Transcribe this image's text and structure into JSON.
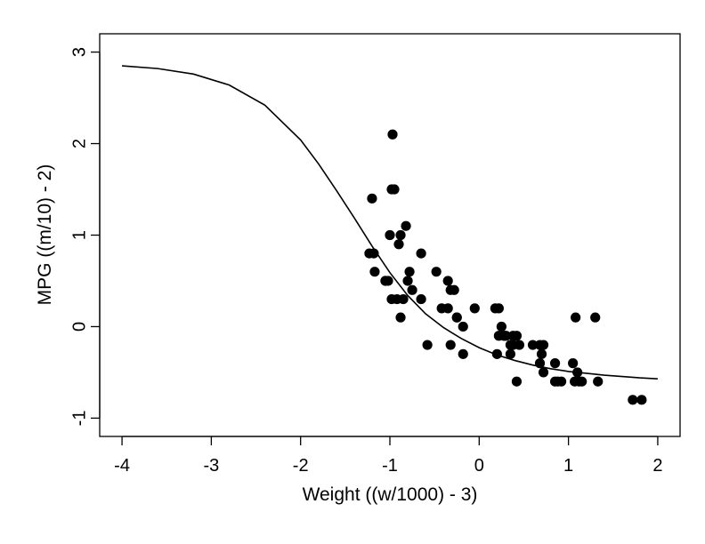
{
  "chart_data": {
    "type": "scatter",
    "xlabel": "Weight ((w/1000) - 3)",
    "ylabel": "MPG ((m/10) - 2)",
    "xlim": [
      -4.25,
      2.25
    ],
    "ylim": [
      -1.2,
      3.2
    ],
    "xticks": [
      -4,
      -3,
      -2,
      -1,
      0,
      1,
      2
    ],
    "yticks": [
      -1,
      0,
      1,
      2,
      3
    ],
    "grid": false,
    "legend": "none",
    "points": {
      "x": [
        -0.97,
        -1.2,
        -0.98,
        -0.95,
        -1.0,
        -0.82,
        -1.05,
        -0.88,
        -0.9,
        -1.23,
        -1.18,
        -1.17,
        -0.65,
        -0.78,
        -0.8,
        -1.02,
        -1.05,
        -0.98,
        -0.75,
        -0.85,
        -0.88,
        -0.92,
        -0.65,
        -0.48,
        -0.35,
        -0.28,
        -0.32,
        -0.25,
        -0.42,
        -0.35,
        -0.25,
        -0.18,
        -0.58,
        -0.32,
        -0.18,
        -0.05,
        0.18,
        0.22,
        0.22,
        0.25,
        0.28,
        0.3,
        0.35,
        0.38,
        0.42,
        0.45,
        0.2,
        0.35,
        0.38,
        0.28,
        0.6,
        0.68,
        0.72,
        0.7,
        0.72,
        0.68,
        0.85,
        0.88,
        0.85,
        0.92,
        1.05,
        1.07,
        1.1,
        1.12,
        1.15,
        1.33,
        0.42,
        1.08,
        1.3,
        1.72,
        1.82
      ],
      "y": [
        2.1,
        1.4,
        1.5,
        1.5,
        1.0,
        1.1,
        0.5,
        1.0,
        0.9,
        0.8,
        0.8,
        0.6,
        0.8,
        0.6,
        0.5,
        0.5,
        0.5,
        0.3,
        0.4,
        0.3,
        0.1,
        0.3,
        0.3,
        0.6,
        0.5,
        0.4,
        0.4,
        0.1,
        0.2,
        0.2,
        0.1,
        0.0,
        -0.2,
        -0.2,
        -0.3,
        0.2,
        0.2,
        0.2,
        -0.1,
        0.0,
        -0.1,
        -0.1,
        -0.2,
        -0.1,
        -0.1,
        -0.2,
        -0.3,
        -0.3,
        -0.2,
        -0.1,
        -0.2,
        -0.2,
        -0.2,
        -0.3,
        -0.5,
        -0.4,
        -0.4,
        -0.6,
        -0.6,
        -0.6,
        -0.4,
        -0.6,
        -0.5,
        -0.6,
        -0.6,
        -0.6,
        -0.6,
        0.1,
        0.1,
        -0.8,
        -0.8
      ]
    },
    "fitted_curve": {
      "x": [
        -4.0,
        -3.6,
        -3.2,
        -2.8,
        -2.4,
        -2.0,
        -1.8,
        -1.6,
        -1.4,
        -1.2,
        -1.0,
        -0.8,
        -0.6,
        -0.4,
        -0.2,
        0.0,
        0.2,
        0.4,
        0.6,
        0.8,
        1.0,
        1.2,
        1.4,
        1.6,
        1.8,
        2.0
      ],
      "y": [
        2.85,
        2.82,
        2.76,
        2.64,
        2.42,
        2.04,
        1.78,
        1.49,
        1.19,
        0.88,
        0.59,
        0.34,
        0.14,
        -0.01,
        -0.13,
        -0.23,
        -0.31,
        -0.37,
        -0.42,
        -0.46,
        -0.49,
        -0.51,
        -0.53,
        -0.545,
        -0.56,
        -0.57
      ]
    }
  }
}
